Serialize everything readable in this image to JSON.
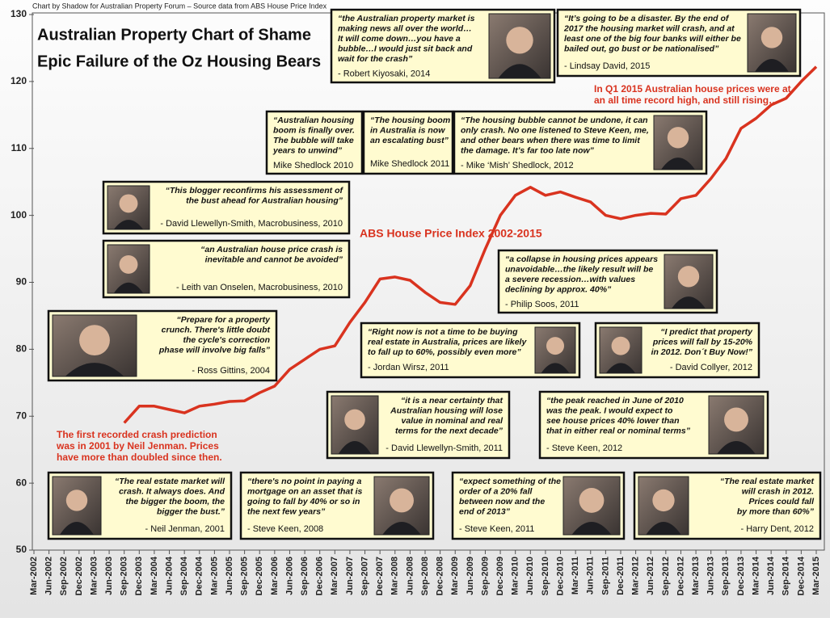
{
  "chart_data": {
    "type": "line",
    "credit": "Chart by Shadow for Australian Property Forum  –  Source data from ABS House Price Index",
    "title": "Australian Property Chart of Shame",
    "subtitle": "Epic Failure of the Oz Housing Bears",
    "categories": [
      "Mar-2002",
      "Jun-2002",
      "Sep-2002",
      "Dec-2002",
      "Mar-2003",
      "Jun-2003",
      "Sep-2003",
      "Dec-2003",
      "Mar-2004",
      "Jun-2004",
      "Sep-2004",
      "Dec-2004",
      "Mar-2005",
      "Jun-2005",
      "Sep-2005",
      "Dec-2005",
      "Mar-2006",
      "Jun-2006",
      "Sep-2006",
      "Dec-2006",
      "Mar-2007",
      "Jun-2007",
      "Sep-2007",
      "Dec-2007",
      "Mar-2008",
      "Jun-2008",
      "Sep-2008",
      "Dec-2008",
      "Mar-2009",
      "Jun-2009",
      "Sep-2009",
      "Dec-2009",
      "Mar-2010",
      "Jun-2010",
      "Sep-2010",
      "Dec-2010",
      "Mar-2011",
      "Jun-2011",
      "Sep-2011",
      "Dec-2011",
      "Mar-2012",
      "Jun-2012",
      "Sep-2012",
      "Dec-2012",
      "Mar-2013",
      "Jun-2013",
      "Sep-2013",
      "Dec-2013",
      "Mar-2014",
      "Jun-2014",
      "Sep-2014",
      "Dec-2014",
      "Mar-2015"
    ],
    "series": [
      {
        "name": "ABS House Price Index  2002-2015",
        "color": "#d9331f",
        "values": [
          null,
          null,
          null,
          null,
          null,
          null,
          69,
          71.5,
          71.5,
          71,
          70.5,
          71.5,
          71.8,
          72.2,
          72.3,
          73.5,
          74.5,
          77,
          78.5,
          80,
          80.5,
          84,
          87,
          90.5,
          90.8,
          90.3,
          88.5,
          87,
          86.7,
          89.5,
          95,
          100,
          103,
          104.2,
          103,
          103.5,
          102.7,
          102,
          100,
          99.5,
          100,
          100.3,
          100.2,
          102.5,
          103,
          105.5,
          108.5,
          113,
          114.5,
          116.5,
          117.5,
          120,
          122.2
        ]
      }
    ],
    "ylim": [
      50,
      130
    ],
    "yticks": [
      50,
      60,
      70,
      80,
      90,
      100,
      110,
      120,
      130
    ],
    "notes": [
      {
        "lines": [
          "In Q1 2015 Australian house prices were at",
          "an all time record high, and still rising…"
        ]
      },
      {
        "lines": [
          "The first recorded crash prediction",
          "was in 2001 by Neil Jenman. Prices",
          "have more than doubled since then."
        ]
      }
    ],
    "annotations": [
      {
        "quote": [
          "“the Australian property market is",
          "making news all over the world…",
          "It will come down…you have a",
          "bubble…I would just sit back and",
          "wait for the crash”"
        ],
        "source": "- Robert Kiyosaki, 2014"
      },
      {
        "quote": [
          "“It’s going to be a disaster. By the end of",
          "2017 the housing market will crash, and at",
          "least one of the big four banks will either be",
          "bailed out, go bust or be nationalised”"
        ],
        "source": "- Lindsay David, 2015"
      },
      {
        "quote": [
          "“Australian housing",
          "boom is finally over.",
          "The bubble will take",
          "years to unwind”"
        ],
        "source": "Mike Shedlock 2010"
      },
      {
        "quote": [
          "“The housing boom",
          "in Australia is now",
          "an escalating bust”"
        ],
        "source": "Mike Shedlock 2011"
      },
      {
        "quote": [
          "“The housing bubble cannot be undone, it can",
          "only crash. No one listened to Steve Keen, me,",
          "and other bears when there was time to limit",
          "the damage. It’s far too late now”"
        ],
        "source": "- Mike ‘Mish’ Shedlock, 2012"
      },
      {
        "quote": [
          "“This blogger reconfirms his assessment of",
          "the bust ahead for Australian housing”"
        ],
        "source": "- David Llewellyn-Smith, Macrobusiness, 2010"
      },
      {
        "quote": [
          "“an Australian house price crash is",
          "inevitable and cannot be avoided”"
        ],
        "source": "- Leith van Onselen, Macrobusiness, 2010"
      },
      {
        "quote": [
          "“a collapse in housing prices appears",
          "unavoidable…the likely result will be",
          "a severe recession…with values",
          "declining by approx. 40%”"
        ],
        "source": "- Philip Soos, 2011"
      },
      {
        "quote": [
          "“Prepare for a property",
          "crunch. There's little doubt",
          "the cycle's correction",
          "phase will involve big falls”"
        ],
        "source": "- Ross Gittins, 2004"
      },
      {
        "quote": [
          "“Right now is not a time to be buying",
          "real estate in Australia, prices are likely",
          "to fall up to 60%, possibly even more”"
        ],
        "source": "- Jordan Wirsz, 2011"
      },
      {
        "quote": [
          "“I predict that property",
          "prices will fall by 15-20%",
          "in 2012. Don´t Buy Now!”"
        ],
        "source": "- David Collyer, 2012"
      },
      {
        "quote": [
          "“it is a near certainty that",
          "Australian housing will lose",
          "value in nominal and real",
          "terms for the next decade”"
        ],
        "source": "- David Llewellyn-Smith, 2011"
      },
      {
        "quote": [
          "“the peak reached in June of 2010",
          "was the peak. I would expect to",
          "see house prices 40% lower than",
          "that in either real or nominal terms”"
        ],
        "source": "- Steve Keen, 2012"
      },
      {
        "quote": [
          "“The real estate market will",
          "crash. It always does. And",
          "the bigger the boom, the",
          "bigger the bust.”"
        ],
        "source": "- Neil Jenman, 2001"
      },
      {
        "quote": [
          "“there's no point in paying a",
          "mortgage on an asset that is",
          "going to fall by 40% or so in",
          "the next few years”"
        ],
        "source": "- Steve Keen, 2008"
      },
      {
        "quote": [
          "“expect something of the",
          "order of  a 20% fall",
          "between now and the",
          "end of 2013”"
        ],
        "source": "- Steve Keen, 2011"
      },
      {
        "quote": [
          "“The real estate market",
          "will crash in 2012.",
          "Prices could fall",
          "by more than 60%”"
        ],
        "source": "- Harry Dent, 2012"
      }
    ]
  }
}
